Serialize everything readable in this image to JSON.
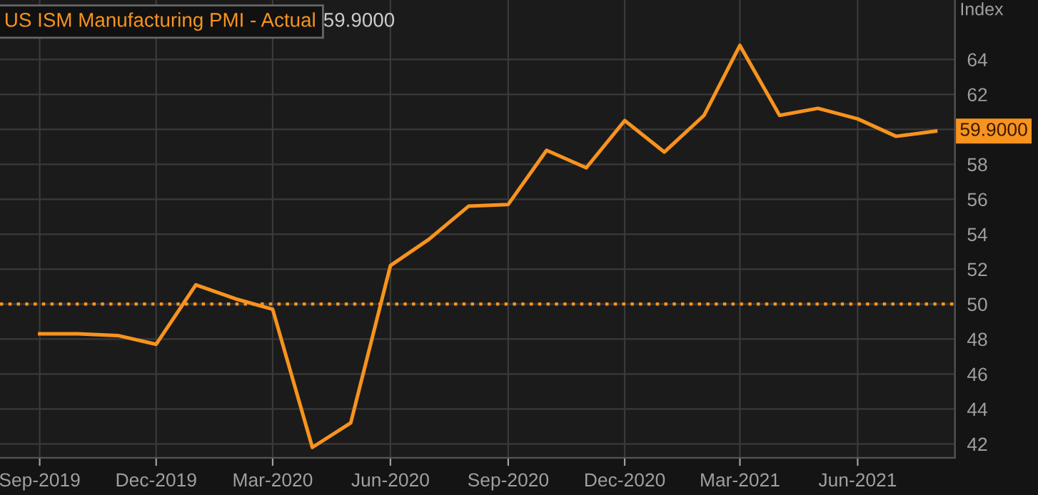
{
  "chart_data": {
    "type": "line",
    "title": "US ISM Manufacturing PMI - Actual",
    "ylabel": "Index",
    "x": [
      "2019-09",
      "2019-10",
      "2019-11",
      "2019-12",
      "2020-01",
      "2020-02",
      "2020-03",
      "2020-04",
      "2020-05",
      "2020-06",
      "2020-07",
      "2020-08",
      "2020-09",
      "2020-10",
      "2020-11",
      "2020-12",
      "2021-01",
      "2021-02",
      "2021-03",
      "2021-04",
      "2021-05",
      "2021-06",
      "2021-07",
      "2021-08"
    ],
    "series": [
      {
        "color": "#f7931e",
        "values": [
          48.3,
          48.3,
          48.2,
          47.7,
          51.1,
          50.3,
          49.7,
          41.8,
          43.2,
          52.2,
          53.7,
          55.6,
          55.7,
          58.8,
          57.8,
          60.5,
          58.7,
          60.8,
          64.8,
          60.8,
          61.2,
          60.6,
          59.6,
          59.9
        ]
      }
    ],
    "annotations": [
      "59.9000",
      {
        "text": "59.9000",
        "x": "2021-08",
        "y": 59.9
      }
    ],
    "xlim": [
      "2019-08-01",
      "2021-08-16"
    ],
    "xticks": [
      {
        "value": "2019-09-01",
        "label": "Sep-2019"
      },
      {
        "value": "2019-12-01",
        "label": "Dec-2019"
      },
      {
        "value": "2020-03-01",
        "label": "Mar-2020"
      },
      {
        "value": "2020-06-01",
        "label": "Jun-2020"
      },
      {
        "value": "2020-09-01",
        "label": "Sep-2020"
      },
      {
        "value": "2020-12-01",
        "label": "Dec-2020"
      },
      {
        "value": "2021-03-01",
        "label": "Mar-2021"
      },
      {
        "value": "2021-06-01",
        "label": "Jun-2021"
      }
    ],
    "ylim": [
      41.2,
      67.4
    ],
    "yticks": [
      42,
      44,
      46,
      48,
      50,
      52,
      54,
      56,
      58,
      {
        "value": 60,
        "label": null
      },
      62,
      64
    ],
    "ref_lines": [
      {
        "axis": "y",
        "value": 50,
        "color": "#f7931e",
        "line_style": "dotted"
      }
    ],
    "grid": true,
    "legend": false,
    "marker": "none",
    "line_style": "solid"
  }
}
